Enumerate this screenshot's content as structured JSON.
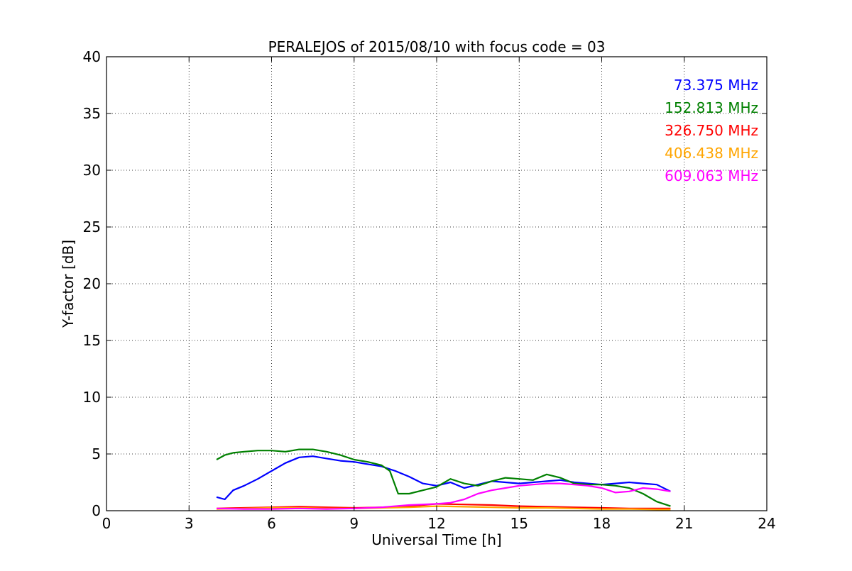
{
  "chart_data": {
    "type": "line",
    "title": "PERALEJOS of 2015/08/10 with focus code = 03",
    "xlabel": "Universal Time [h]",
    "ylabel": "Y-factor [dB]",
    "xlim": [
      0,
      24
    ],
    "ylim": [
      0,
      40
    ],
    "xticks": [
      0,
      3,
      6,
      9,
      12,
      15,
      18,
      21,
      24
    ],
    "yticks": [
      0,
      5,
      10,
      15,
      20,
      25,
      30,
      35,
      40
    ],
    "xtick_labels": [
      "0",
      "3",
      "6",
      "9",
      "12",
      "15",
      "18",
      "21",
      "24"
    ],
    "ytick_labels": [
      "0",
      "5",
      "10",
      "15",
      "20",
      "25",
      "30",
      "35",
      "40"
    ],
    "grid": true,
    "legend_placement": "top-right",
    "series": [
      {
        "name": "73.375 MHz",
        "color": "#0000ff",
        "x": [
          4.0,
          4.3,
          4.6,
          5.0,
          5.5,
          6.0,
          6.5,
          7.0,
          7.5,
          8.0,
          8.5,
          9.0,
          9.5,
          10.0,
          10.5,
          11.0,
          11.5,
          12.0,
          12.5,
          13.0,
          13.5,
          14.0,
          14.5,
          15.0,
          15.5,
          16.0,
          16.5,
          17.0,
          17.5,
          18.0,
          18.5,
          19.0,
          19.5,
          20.0,
          20.5
        ],
        "y": [
          1.2,
          1.0,
          1.8,
          2.2,
          2.8,
          3.5,
          4.2,
          4.7,
          4.8,
          4.6,
          4.4,
          4.3,
          4.1,
          3.9,
          3.5,
          3.0,
          2.4,
          2.2,
          2.5,
          2.0,
          2.3,
          2.6,
          2.5,
          2.4,
          2.5,
          2.6,
          2.7,
          2.5,
          2.4,
          2.3,
          2.4,
          2.5,
          2.4,
          2.3,
          1.7
        ]
      },
      {
        "name": "152.813 MHz",
        "color": "#008000",
        "x": [
          4.0,
          4.3,
          4.6,
          5.0,
          5.5,
          6.0,
          6.5,
          7.0,
          7.5,
          8.0,
          8.5,
          9.0,
          9.5,
          10.0,
          10.3,
          10.6,
          11.0,
          11.5,
          12.0,
          12.5,
          13.0,
          13.5,
          14.0,
          14.5,
          15.0,
          15.5,
          16.0,
          16.5,
          17.0,
          17.5,
          18.0,
          18.5,
          19.0,
          19.5,
          20.0,
          20.5
        ],
        "y": [
          4.5,
          4.9,
          5.1,
          5.2,
          5.3,
          5.3,
          5.2,
          5.4,
          5.4,
          5.2,
          4.9,
          4.5,
          4.3,
          4.0,
          3.5,
          1.5,
          1.5,
          1.8,
          2.1,
          2.8,
          2.4,
          2.2,
          2.6,
          2.9,
          2.8,
          2.7,
          3.2,
          2.9,
          2.4,
          2.3,
          2.3,
          2.2,
          2.0,
          1.5,
          0.8,
          0.4
        ]
      },
      {
        "name": "326.750 MHz",
        "color": "#ff0000",
        "x": [
          4.0,
          5.0,
          6.0,
          7.0,
          8.0,
          9.0,
          10.0,
          11.0,
          12.0,
          13.0,
          14.0,
          15.0,
          16.0,
          17.0,
          18.0,
          19.0,
          20.0,
          20.5
        ],
        "y": [
          0.2,
          0.25,
          0.3,
          0.35,
          0.3,
          0.25,
          0.3,
          0.4,
          0.6,
          0.55,
          0.5,
          0.4,
          0.35,
          0.3,
          0.25,
          0.2,
          0.2,
          0.2
        ]
      },
      {
        "name": "406.438 MHz",
        "color": "#ffa500",
        "x": [
          4.0,
          5.0,
          6.0,
          7.0,
          8.0,
          9.0,
          10.0,
          11.0,
          12.0,
          13.0,
          14.0,
          15.0,
          16.0,
          17.0,
          18.0,
          19.0,
          20.0,
          20.5
        ],
        "y": [
          0.15,
          0.2,
          0.25,
          0.25,
          0.2,
          0.2,
          0.25,
          0.3,
          0.4,
          0.35,
          0.3,
          0.25,
          0.25,
          0.2,
          0.15,
          0.15,
          0.1,
          0.1
        ]
      },
      {
        "name": "609.063 MHz",
        "color": "#ff00ff",
        "x": [
          4.0,
          5.0,
          6.0,
          7.0,
          8.0,
          9.0,
          10.0,
          11.0,
          12.0,
          12.5,
          13.0,
          13.5,
          14.0,
          14.5,
          15.0,
          15.5,
          16.0,
          16.5,
          17.0,
          17.5,
          18.0,
          18.5,
          19.0,
          19.5,
          20.0,
          20.5
        ],
        "y": [
          0.2,
          0.15,
          0.15,
          0.2,
          0.15,
          0.2,
          0.3,
          0.5,
          0.6,
          0.7,
          1.0,
          1.5,
          1.8,
          2.0,
          2.2,
          2.3,
          2.4,
          2.4,
          2.3,
          2.2,
          2.0,
          1.6,
          1.7,
          2.0,
          1.9,
          1.7
        ]
      }
    ]
  }
}
